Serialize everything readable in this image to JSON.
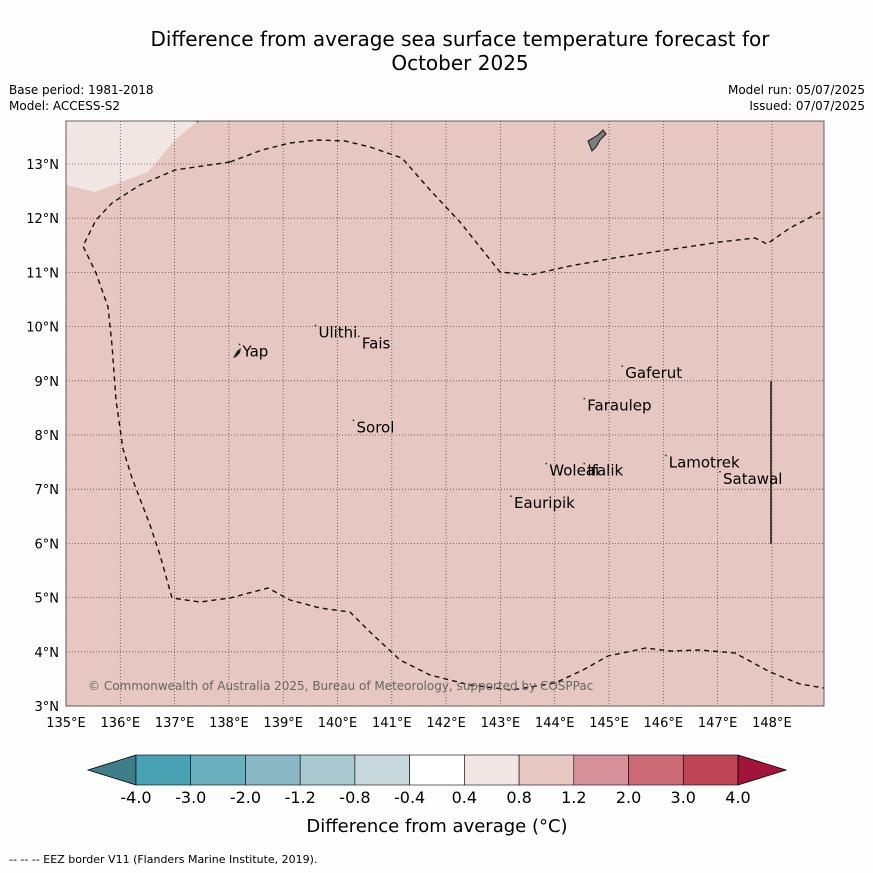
{
  "title_line1": "Difference from average sea surface temperature forecast for",
  "title_line2": "October 2025",
  "base_period": "Base period: 1981-2018",
  "model": "Model: ACCESS-S2",
  "model_run": "Model run: 05/07/2025",
  "issued": "Issued: 07/07/2025",
  "lat_ticks": [
    "13°N",
    "12°N",
    "11°N",
    "10°N",
    "9°N",
    "8°N",
    "7°N",
    "6°N",
    "5°N",
    "4°N",
    "3°N"
  ],
  "lon_ticks": [
    "135°E",
    "136°E",
    "137°E",
    "138°E",
    "139°E",
    "140°E",
    "141°E",
    "142°E",
    "143°E",
    "144°E",
    "145°E",
    "146°E",
    "147°E",
    "148°E"
  ],
  "places": [
    {
      "name": "Yap",
      "lon": 138.25,
      "lat": 9.45
    },
    {
      "name": "Ulithi",
      "lon": 139.65,
      "lat": 9.8
    },
    {
      "name": "Fais",
      "lon": 140.45,
      "lat": 9.6
    },
    {
      "name": "Sorol",
      "lon": 140.35,
      "lat": 8.05
    },
    {
      "name": "Gaferut",
      "lon": 145.3,
      "lat": 9.05
    },
    {
      "name": "Faraulep",
      "lon": 144.6,
      "lat": 8.45
    },
    {
      "name": "Lamotrek",
      "lon": 146.1,
      "lat": 7.4
    },
    {
      "name": "Satawal",
      "lon": 147.1,
      "lat": 7.1
    },
    {
      "name": "Woleai",
      "lon": 143.9,
      "lat": 7.25
    },
    {
      "name": "Ifalik",
      "lon": 144.6,
      "lat": 7.25
    },
    {
      "name": "Eauripik",
      "lon": 143.25,
      "lat": 6.65
    }
  ],
  "copyright": "© Commonwealth of Australia 2025, Bureau of Meteorology, supported by COSPPac",
  "colorbar": {
    "labels": [
      "-4.0",
      "-3.0",
      "-2.0",
      "-1.2",
      "-0.8",
      "-0.4",
      "0.4",
      "0.8",
      "1.2",
      "2.0",
      "3.0",
      "4.0"
    ],
    "colors": [
      "#3e7d8a",
      "#48a2b3",
      "#6aafbd",
      "#89b8c4",
      "#a9c9d0",
      "#c8d9dd",
      "#ffffff",
      "#f2e6e4",
      "#e6c7c2",
      "#d6919a",
      "#cc6a76",
      "#bf4556",
      "#a3143a"
    ],
    "title": "Difference from average (°C)"
  },
  "anomaly_region_colors": {
    "main": "#e6c7c2",
    "northwest": "#f2e6e4"
  },
  "footnote": "--  --  -- EEZ border V11 (Flanders Marine Institute, 2019)."
}
